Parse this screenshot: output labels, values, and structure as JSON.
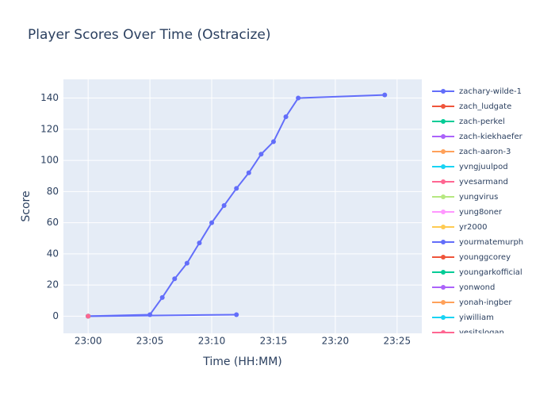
{
  "chart_data": {
    "type": "line",
    "title": "Player Scores Over Time (Ostracize)",
    "x_label": "Time (HH:MM)",
    "y_label": "Score",
    "xlim": [
      "22:58",
      "23:27"
    ],
    "xticks": [
      "23:00",
      "23:05",
      "23:10",
      "23:15",
      "23:20",
      "23:25"
    ],
    "ylim": [
      -11,
      152
    ],
    "yticks": [
      0,
      20,
      40,
      60,
      80,
      100,
      120,
      140
    ],
    "grid": true,
    "series": [
      {
        "name": "zachary-wilde-1",
        "color": "#636efa",
        "x": [
          "23:00",
          "23:05",
          "23:06",
          "23:07",
          "23:08",
          "23:09",
          "23:10",
          "23:11",
          "23:12",
          "23:13",
          "23:14",
          "23:15",
          "23:16",
          "23:17",
          "23:24"
        ],
        "values": [
          0,
          1,
          12,
          24,
          34,
          47,
          60,
          71,
          82,
          92,
          104,
          112,
          128,
          140,
          142
        ]
      },
      {
        "name": "zach_ludgate",
        "color": "#EF553B",
        "x": [
          "23:00"
        ],
        "values": [
          0
        ]
      },
      {
        "name": "zach-perkel",
        "color": "#00cc96",
        "x": [
          "23:00"
        ],
        "values": [
          0
        ]
      },
      {
        "name": "zach-kiekhaefer",
        "color": "#ab63fa",
        "x": [
          "23:00"
        ],
        "values": [
          0
        ]
      },
      {
        "name": "zach-aaron-3",
        "color": "#FFA15A",
        "x": [
          "23:00"
        ],
        "values": [
          0
        ]
      },
      {
        "name": "yvngjuulpod",
        "color": "#19d3f3",
        "x": [
          "23:00"
        ],
        "values": [
          0
        ]
      },
      {
        "name": "yvesarmand",
        "color": "#FF6692",
        "x": [
          "23:00"
        ],
        "values": [
          0
        ]
      },
      {
        "name": "yungvirus",
        "color": "#B6E880",
        "x": [
          "23:00"
        ],
        "values": [
          0
        ]
      },
      {
        "name": "yung8oner",
        "color": "#FF97FF",
        "x": [
          "23:00"
        ],
        "values": [
          0
        ]
      },
      {
        "name": "yr2000",
        "color": "#FECB52",
        "x": [
          "23:00"
        ],
        "values": [
          0
        ]
      },
      {
        "name": "yourmatemurph",
        "color": "#636efa",
        "x": [
          "23:00",
          "23:12"
        ],
        "values": [
          0,
          1
        ]
      },
      {
        "name": "younggcorey",
        "color": "#EF553B",
        "x": [
          "23:00"
        ],
        "values": [
          0
        ]
      },
      {
        "name": "youngarkofficial",
        "color": "#00cc96",
        "x": [
          "23:00"
        ],
        "values": [
          0
        ]
      },
      {
        "name": "yonwond",
        "color": "#ab63fa",
        "x": [
          "23:00"
        ],
        "values": [
          0
        ]
      },
      {
        "name": "yonah-ingber",
        "color": "#FFA15A",
        "x": [
          "23:00"
        ],
        "values": [
          0
        ]
      },
      {
        "name": "yiwilliam",
        "color": "#19d3f3",
        "x": [
          "23:00"
        ],
        "values": [
          0
        ]
      },
      {
        "name": "yesitslogan",
        "color": "#FF6692",
        "x": [
          "23:00"
        ],
        "values": [
          0
        ]
      }
    ]
  }
}
